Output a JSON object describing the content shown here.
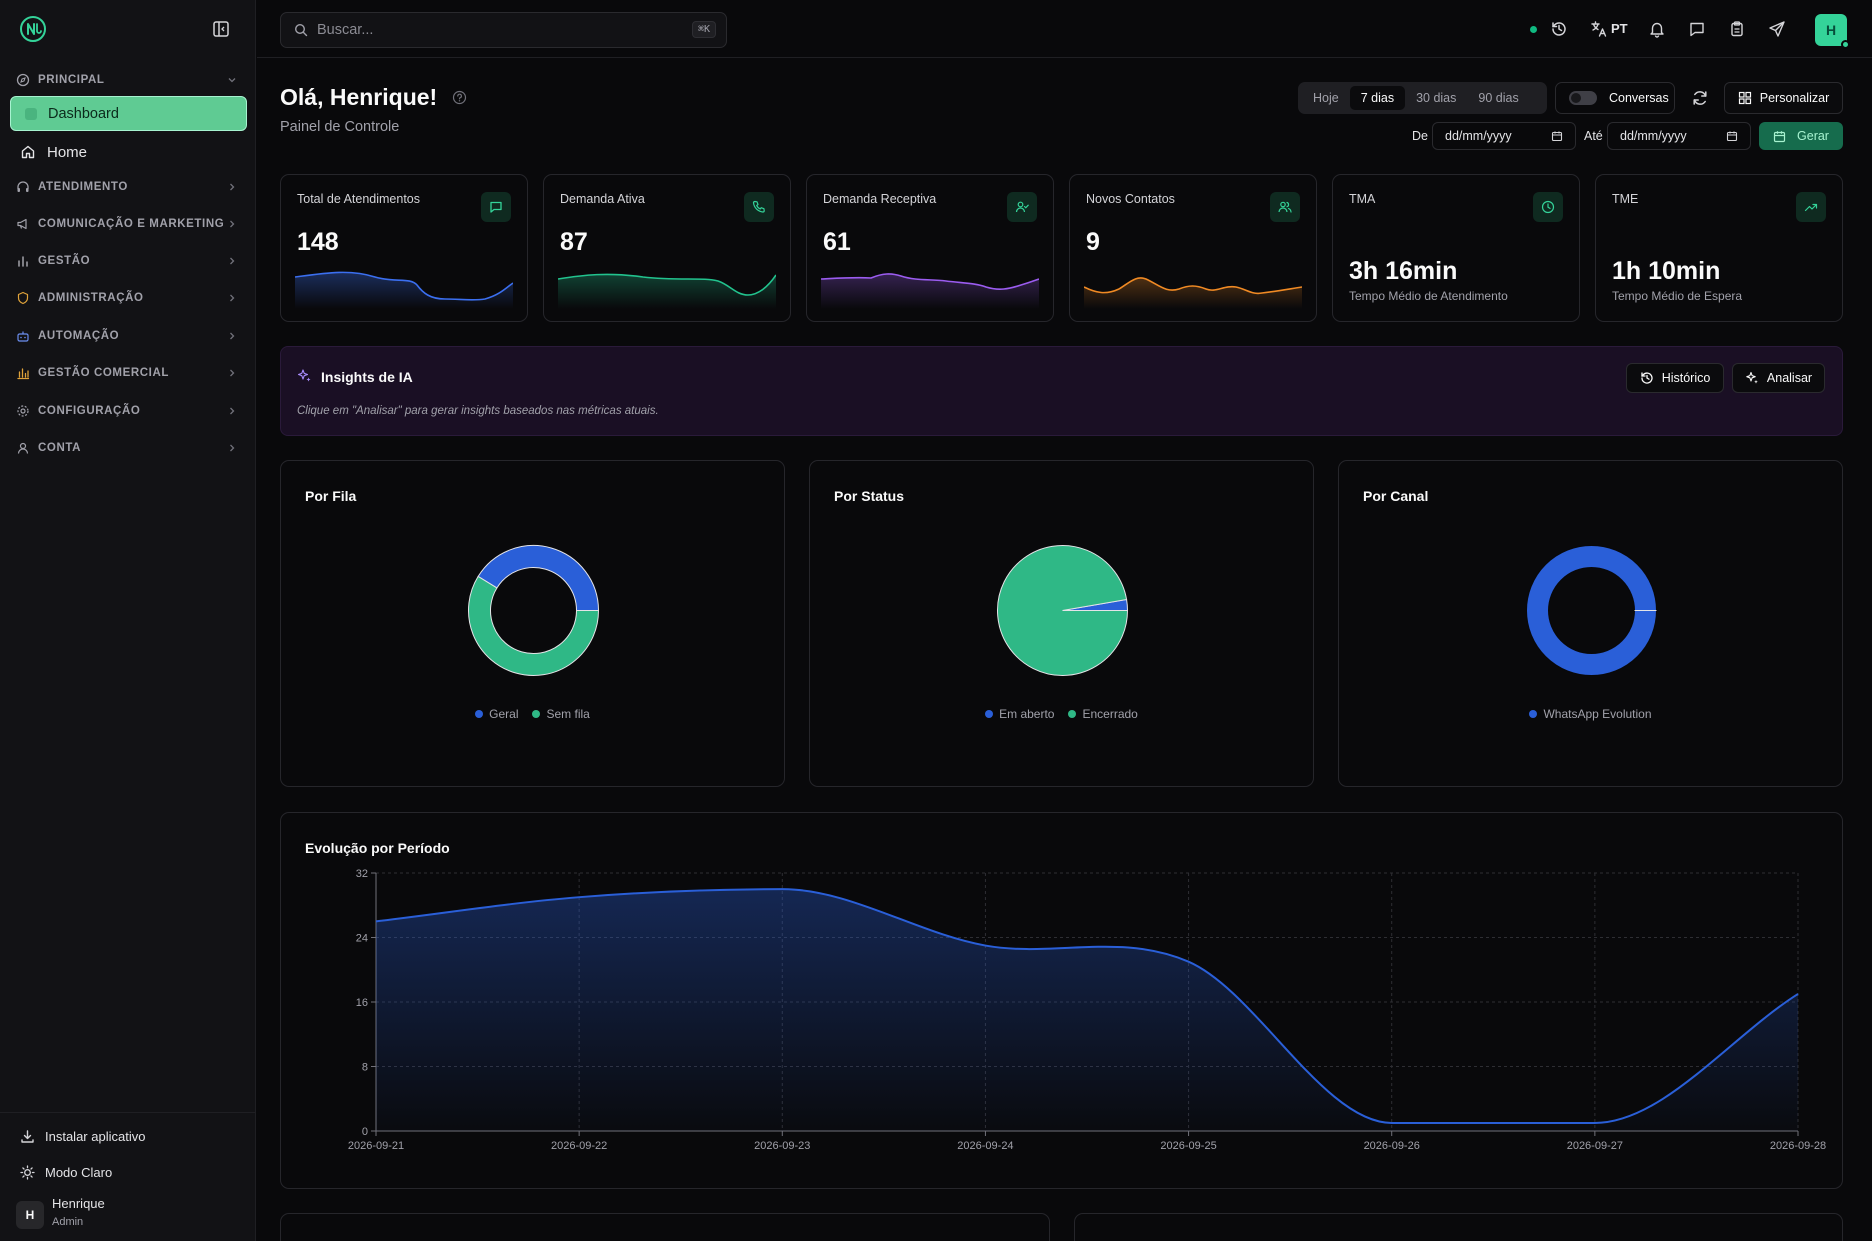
{
  "sidebar": {
    "sections": [
      {
        "label": "PRINCIPAL",
        "icon": "compass-icon",
        "expanded": true
      },
      {
        "label": "ATENDIMENTO",
        "icon": "headset-icon"
      },
      {
        "label": "COMUNICAÇÃO E MARKETING",
        "icon": "megaphone-icon"
      },
      {
        "label": "GESTÃO",
        "icon": "bar-chart-icon"
      },
      {
        "label": "ADMINISTRAÇÃO",
        "icon": "shield-icon"
      },
      {
        "label": "AUTOMAÇÃO",
        "icon": "bot-icon"
      },
      {
        "label": "GESTÃO COMERCIAL",
        "icon": "chart-column-icon"
      },
      {
        "label": "CONFIGURAÇÃO",
        "icon": "gear-icon"
      },
      {
        "label": "CONTA",
        "icon": "user-icon"
      }
    ],
    "items": {
      "dashboard": "Dashboard",
      "home": "Home"
    },
    "bottom": {
      "install": "Instalar aplicativo",
      "theme": "Modo Claro"
    },
    "user": {
      "initial": "H",
      "name": "Henrique",
      "role": "Admin"
    }
  },
  "topbar": {
    "search_placeholder": "Buscar...",
    "search_shortcut": "⌘K",
    "language": "PT",
    "avatar_initial": "H"
  },
  "header": {
    "greeting": "Olá, Henrique!",
    "subtitle": "Painel de Controle",
    "ranges": [
      "Hoje",
      "7 dias",
      "30 dias",
      "90 dias"
    ],
    "active_range": "7 dias",
    "conversations_toggle": "Conversas",
    "customize": "Personalizar",
    "from_label": "De",
    "to_label": "Até",
    "date_placeholder": "dd/mm/yyyy",
    "generate": "Gerar"
  },
  "kpis": [
    {
      "label": "Total de Atendimentos",
      "value": "148",
      "icon": "message-square-icon",
      "color": "#3b6ff0"
    },
    {
      "label": "Demanda Ativa",
      "value": "87",
      "icon": "phone-icon",
      "color": "#22c38e"
    },
    {
      "label": "Demanda Receptiva",
      "value": "61",
      "icon": "user-check-icon",
      "color": "#9b5cf0"
    },
    {
      "label": "Novos Contatos",
      "value": "9",
      "icon": "users-icon",
      "color": "#f08a24"
    },
    {
      "label": "TMA",
      "value": "3h 16min",
      "sub": "Tempo Médio de Atendimento",
      "icon": "clock-icon"
    },
    {
      "label": "TME",
      "value": "1h 10min",
      "sub": "Tempo Médio de Espera",
      "icon": "trending-up-icon"
    }
  ],
  "insights": {
    "title": "Insights de IA",
    "history": "Histórico",
    "analyze": "Analisar",
    "hint": "Clique em \"Analisar\" para gerar insights baseados nas métricas atuais."
  },
  "colors": {
    "accent": "#34d399",
    "blue": "#2a5fd8",
    "green": "#2fb886"
  },
  "chart_data": [
    {
      "type": "pie",
      "title": "Por Fila",
      "donut": true,
      "labels": [
        "Geral",
        "Sem fila"
      ],
      "values": [
        61,
        87
      ],
      "colors": [
        "#2a5fd8",
        "#2fb886"
      ]
    },
    {
      "type": "pie",
      "title": "Por Status",
      "donut": false,
      "labels": [
        "Em aberto",
        "Encerrado"
      ],
      "values": [
        4,
        144
      ],
      "colors": [
        "#2a5fd8",
        "#2fb886"
      ]
    },
    {
      "type": "pie",
      "title": "Por Canal",
      "donut": true,
      "labels": [
        "WhatsApp Evolution"
      ],
      "values": [
        148
      ],
      "colors": [
        "#2a5fd8"
      ]
    },
    {
      "type": "area",
      "title": "Evolução por Período",
      "x": [
        "2026-09-21",
        "2026-09-22",
        "2026-09-23",
        "2026-09-24",
        "2026-09-25",
        "2026-09-26",
        "2026-09-27",
        "2026-09-28"
      ],
      "y": [
        26,
        29,
        30,
        23,
        21,
        1,
        1,
        17
      ],
      "ylim": [
        0,
        32
      ],
      "yticks": [
        0,
        8,
        16,
        24,
        32
      ],
      "grid": true,
      "color": "#2a5fd8"
    }
  ]
}
